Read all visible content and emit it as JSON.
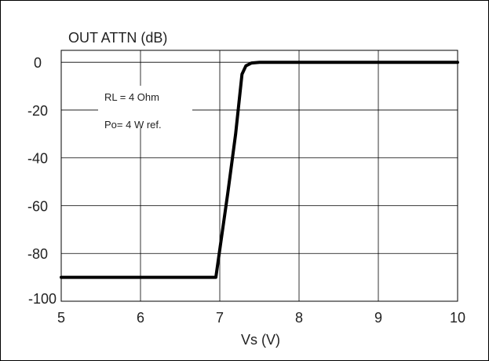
{
  "chart_data": {
    "type": "line",
    "title": "OUT ATTN (dB)",
    "xlabel": "Vs (V)",
    "ylabel": "OUT ATTN (dB)",
    "xlim": [
      5,
      10
    ],
    "ylim": [
      -100,
      5
    ],
    "xticks": [
      "5",
      "6",
      "7",
      "8",
      "9",
      "10"
    ],
    "yticks": [
      {
        "value": 0,
        "label": "0"
      },
      {
        "value": -20,
        "label": "-20"
      },
      {
        "value": -40,
        "label": "-40"
      },
      {
        "value": -60,
        "label": "-60"
      },
      {
        "value": -80,
        "label": "-80"
      },
      {
        "value": -100,
        "label": "-100"
      }
    ],
    "grid": true,
    "annotations": [
      "RL = 4 Ohm",
      "Po= 4 W ref."
    ],
    "series": [
      {
        "name": "",
        "color": "#000000",
        "points": [
          [
            5.0,
            -90
          ],
          [
            6.0,
            -90
          ],
          [
            6.95,
            -90
          ],
          [
            7.1,
            -55
          ],
          [
            7.2,
            -30
          ],
          [
            7.28,
            -5
          ],
          [
            7.33,
            -1.5
          ],
          [
            7.4,
            -0.3
          ],
          [
            7.5,
            0
          ],
          [
            8.0,
            0
          ],
          [
            9.0,
            0
          ],
          [
            10.0,
            0
          ]
        ]
      }
    ]
  }
}
